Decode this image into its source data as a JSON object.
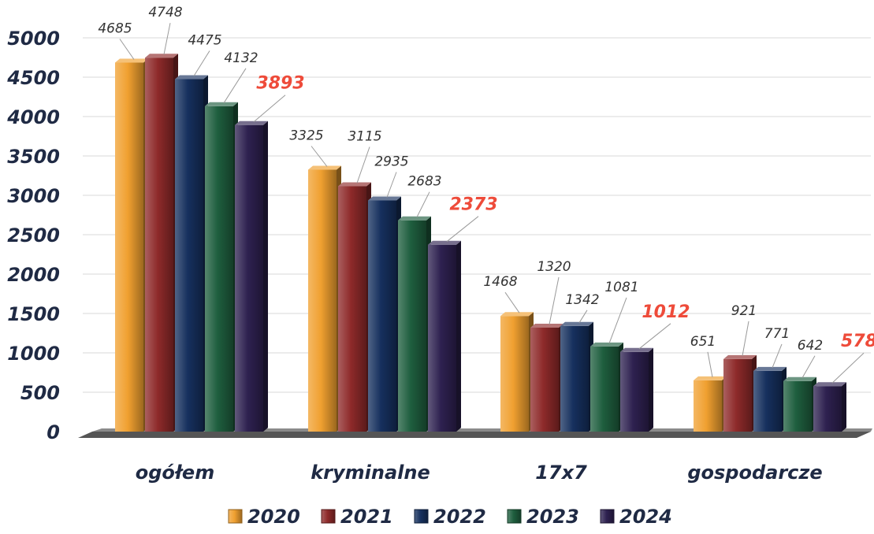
{
  "chart_data": {
    "type": "bar",
    "title": "",
    "xlabel": "",
    "ylabel": "",
    "ylim": [
      0,
      5000
    ],
    "yticks": [
      0,
      500,
      1000,
      1500,
      2000,
      2500,
      3000,
      3500,
      4000,
      4500,
      5000
    ],
    "grid": true,
    "legend_position": "bottom",
    "categories": [
      "ogółem",
      "kryminalne",
      "17x7",
      "gospodarcze"
    ],
    "series": [
      {
        "name": "2020",
        "color": "#f0a030",
        "values": [
          4685,
          3325,
          1468,
          651
        ]
      },
      {
        "name": "2021",
        "color": "#8e2a2a",
        "values": [
          4748,
          3115,
          1320,
          921
        ]
      },
      {
        "name": "2022",
        "color": "#16305e",
        "values": [
          4475,
          2935,
          1342,
          771
        ]
      },
      {
        "name": "2023",
        "color": "#1e5e3e",
        "values": [
          4132,
          2683,
          1081,
          642
        ]
      },
      {
        "name": "2024",
        "color": "#2e2150",
        "values": [
          3893,
          2373,
          1012,
          578
        ]
      }
    ],
    "highlight_series": "2024",
    "highlight_color": "#ee4b3a"
  }
}
